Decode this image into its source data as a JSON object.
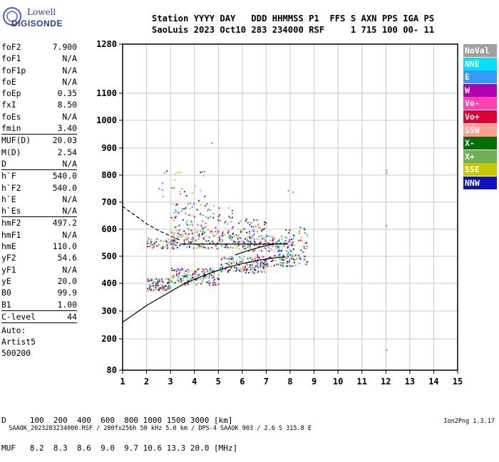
{
  "logo": {
    "line1": "Lowell",
    "line2": "DIGISONDE"
  },
  "header": {
    "labels": "Station YYYY DAY   DDD HHMMSS P1  FFS S AXN PPS IGA PS",
    "values": "SaoLuis 2023 Oct10 283 234000 RSF     1 715 100 00- 11"
  },
  "params_group1": [
    {
      "name": "foF2",
      "value": "7.900"
    },
    {
      "name": "foF1",
      "value": "N/A"
    },
    {
      "name": "foF1p",
      "value": "N/A"
    },
    {
      "name": "foE",
      "value": "N/A"
    },
    {
      "name": "foEp",
      "value": "0.35"
    },
    {
      "name": "fxI",
      "value": "8.50"
    },
    {
      "name": "foEs",
      "value": "N/A"
    },
    {
      "name": "fmin",
      "value": "3.40"
    }
  ],
  "params_group2": [
    {
      "name": "MUF(D)",
      "value": "20.03"
    },
    {
      "name": "M(D)",
      "value": "2.54"
    },
    {
      "name": "D",
      "value": "N/A"
    }
  ],
  "params_group3": [
    {
      "name": "h`F",
      "value": "540.0"
    },
    {
      "name": "h`F2",
      "value": "540.0"
    },
    {
      "name": "h`E",
      "value": "N/A"
    },
    {
      "name": "h`Es",
      "value": "N/A"
    }
  ],
  "params_group4": [
    {
      "name": "hmF2",
      "value": "497.2"
    },
    {
      "name": "hmF1",
      "value": "N/A"
    },
    {
      "name": "hmE",
      "value": "110.0"
    },
    {
      "name": "yF2",
      "value": "54.6"
    },
    {
      "name": "yF1",
      "value": "N/A"
    },
    {
      "name": "yE",
      "value": "20.0"
    },
    {
      "name": "B0",
      "value": "99.9"
    },
    {
      "name": "B1",
      "value": "1.00"
    }
  ],
  "params_group5": [
    {
      "name": "C-level",
      "value": "44"
    }
  ],
  "auto": {
    "line1": "Auto:",
    "line2": "Artist5",
    "line3": "500200"
  },
  "legend": [
    {
      "label": "NoVal",
      "color": "#a0a0a0"
    },
    {
      "label": "NNE",
      "color": "#00e0ff"
    },
    {
      "label": "E",
      "color": "#3399ff"
    },
    {
      "label": "W",
      "color": "#b000b0"
    },
    {
      "label": "Vo-",
      "color": "#ff40b0"
    },
    {
      "label": "Vo+",
      "color": "#e00030"
    },
    {
      "label": "SSW",
      "color": "#ffa090"
    },
    {
      "label": "X-",
      "color": "#007000"
    },
    {
      "label": "X+",
      "color": "#70b050"
    },
    {
      "label": "SSE",
      "color": "#c8c800"
    },
    {
      "label": "NNW",
      "color": "#1010c0"
    }
  ],
  "dmuf": {
    "d_line": "D     100  200  400  600  800 1000 1500 3000 [km]",
    "muf_line": "MUF   8.2  8.3  8.6  9.0  9.7 10.6 13.3 20.0 [MHz]"
  },
  "footer": {
    "text": "SAAOK_2023283234000.RSF / 280fx256h 50 kHz 5.0 km / DPS-4 SAAOK 903 / 2.6 S 315.8 E",
    "version": "Ion2Png 1.3.17"
  },
  "chart_data": {
    "type": "scatter",
    "x_ticks": [
      "1",
      "2",
      "3",
      "4",
      "5",
      "6",
      "7",
      "8",
      "9",
      "10",
      "11",
      "12",
      "13",
      "14",
      "15"
    ],
    "y_ticks": [
      "80",
      "200",
      "300",
      "400",
      "500",
      "600",
      "700",
      "800",
      "900",
      "1000",
      "1100",
      "1280"
    ],
    "xlim": [
      1,
      15
    ],
    "ylim": [
      80,
      1280
    ],
    "grid": true,
    "legend_placement": "right",
    "profile_curve": {
      "x": [
        1.0,
        1.5,
        2.0,
        2.5,
        3.0,
        3.5,
        4.0,
        4.5,
        5.0,
        5.5,
        6.0,
        6.5,
        7.0,
        7.5,
        7.8
      ],
      "y": [
        260,
        290,
        320,
        345,
        370,
        395,
        415,
        432,
        448,
        462,
        473,
        482,
        490,
        496,
        497
      ]
    },
    "trace_solid_h": {
      "x": [
        3.4,
        4.0,
        5.0,
        6.0,
        7.0,
        7.9
      ],
      "y": [
        545,
        545,
        545,
        545,
        545,
        545
      ]
    },
    "trace_dashed": {
      "x": [
        1.0,
        1.3,
        1.7,
        2.0,
        2.5,
        3.0,
        3.4
      ],
      "y": [
        685,
        665,
        640,
        620,
        595,
        575,
        560
      ]
    },
    "trace_solid_rise": {
      "x": [
        5.7,
        6.2,
        6.7,
        7.2,
        7.5
      ],
      "y": [
        505,
        520,
        533,
        543,
        548
      ]
    },
    "clusters": [
      {
        "x": [
          2.0,
          3.0
        ],
        "y": [
          375,
          420
        ],
        "n": 90
      },
      {
        "x": [
          3.0,
          5.0
        ],
        "y": [
          395,
          460
        ],
        "n": 170
      },
      {
        "x": [
          5.0,
          7.0
        ],
        "y": [
          440,
          500
        ],
        "n": 150
      },
      {
        "x": [
          6.5,
          8.2
        ],
        "y": [
          465,
          510
        ],
        "n": 90
      },
      {
        "x": [
          2.0,
          3.2
        ],
        "y": [
          530,
          570
        ],
        "n": 50
      },
      {
        "x": [
          3.0,
          6.0
        ],
        "y": [
          530,
          600
        ],
        "n": 190
      },
      {
        "x": [
          6.0,
          7.8
        ],
        "y": [
          520,
          580
        ],
        "n": 120
      },
      {
        "x": [
          7.8,
          8.7
        ],
        "y": [
          465,
          610
        ],
        "n": 70
      },
      {
        "x": [
          3.0,
          5.6
        ],
        "y": [
          600,
          700
        ],
        "n": 90
      },
      {
        "x": [
          2.5,
          4.5
        ],
        "y": [
          700,
          820
        ],
        "n": 25
      },
      {
        "x": [
          5.8,
          7.0
        ],
        "y": [
          580,
          640
        ],
        "n": 40
      }
    ],
    "outliers": [
      {
        "x": 12.0,
        "y": 820
      },
      {
        "x": 12.0,
        "y": 810
      },
      {
        "x": 12.0,
        "y": 615
      },
      {
        "x": 12.0,
        "y": 160
      },
      {
        "x": 4.7,
        "y": 920
      },
      {
        "x": 4.3,
        "y": 815
      },
      {
        "x": 4.4,
        "y": 815
      },
      {
        "x": 7.9,
        "y": 745
      },
      {
        "x": 8.1,
        "y": 740
      }
    ]
  }
}
